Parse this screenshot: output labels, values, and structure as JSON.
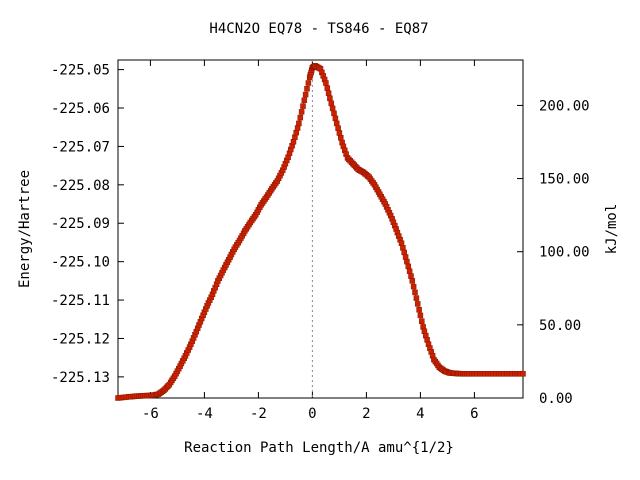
{
  "chart_data": {
    "type": "line",
    "title": "H4CN2O   EQ78 - TS846 - EQ87",
    "xlabel": "Reaction Path Length/A amu^{1/2}",
    "ylabel": "Energy/Hartree",
    "y2label": "kJ/mol",
    "xlim": [
      -7.2,
      7.8
    ],
    "ylim": [
      -225.1355,
      -225.0475
    ],
    "x_ticks": [
      -6,
      -4,
      -2,
      0,
      2,
      4,
      6
    ],
    "x_tick_labels": [
      "-6",
      "-4",
      "-2",
      "0",
      "2",
      "4",
      "6"
    ],
    "y_ticks": [
      -225.05,
      -225.06,
      -225.07,
      -225.08,
      -225.09,
      -225.1,
      -225.11,
      -225.12,
      -225.13
    ],
    "y_tick_labels": [
      "-225.05",
      "-225.06",
      "-225.07",
      "-225.08",
      "-225.09",
      "-225.10",
      "-225.11",
      "-225.12",
      "-225.13"
    ],
    "y2_ref_hartree": -225.1355,
    "y2_ticks": [
      0,
      50,
      100,
      150,
      200
    ],
    "y2_tick_labels": [
      "0.00",
      "50.00",
      "100.00",
      "150.00",
      "200.00"
    ],
    "zero_line": true,
    "grid": false,
    "series": [
      {
        "line_color": "#00aa00",
        "marker_color": "#cc2200",
        "x": [
          -7.2,
          -6.8,
          -6.5,
          -6.2,
          -5.9,
          -5.7,
          -5.5,
          -5.3,
          -5.1,
          -4.9,
          -4.7,
          -4.5,
          -4.3,
          -4.1,
          -3.9,
          -3.7,
          -3.5,
          -3.3,
          -3.1,
          -2.9,
          -2.7,
          -2.5,
          -2.3,
          -2.1,
          -1.9,
          -1.7,
          -1.5,
          -1.3,
          -1.1,
          -0.9,
          -0.7,
          -0.5,
          -0.3,
          -0.1,
          0.0,
          0.1,
          0.3,
          0.5,
          0.7,
          0.9,
          1.1,
          1.3,
          1.5,
          1.7,
          1.9,
          2.1,
          2.3,
          2.5,
          2.7,
          2.9,
          3.1,
          3.3,
          3.5,
          3.7,
          3.9,
          4.1,
          4.3,
          4.5,
          4.7,
          4.9,
          5.1,
          5.3,
          5.5,
          5.8,
          6.2,
          6.6,
          7.0,
          7.4,
          7.8
        ],
        "y": [
          -225.1355,
          -225.1352,
          -225.135,
          -225.1349,
          -225.1348,
          -225.1345,
          -225.1335,
          -225.132,
          -225.1298,
          -225.1272,
          -225.1245,
          -225.1215,
          -225.1182,
          -225.1148,
          -225.1115,
          -225.1085,
          -225.105,
          -225.1022,
          -225.0995,
          -225.0968,
          -225.0945,
          -225.092,
          -225.0898,
          -225.0878,
          -225.0852,
          -225.0832,
          -225.081,
          -225.079,
          -225.0762,
          -225.0728,
          -225.0688,
          -225.064,
          -225.058,
          -225.052,
          -225.0495,
          -225.049,
          -225.0498,
          -225.0535,
          -225.0588,
          -225.064,
          -225.069,
          -225.073,
          -225.0745,
          -225.076,
          -225.0768,
          -225.078,
          -225.08,
          -225.0825,
          -225.085,
          -225.088,
          -225.0915,
          -225.0952,
          -225.1,
          -225.105,
          -225.111,
          -225.117,
          -225.1215,
          -225.1255,
          -225.1275,
          -225.1285,
          -225.129,
          -225.1291,
          -225.1292,
          -225.1292,
          -225.1292,
          -225.1292,
          -225.1292,
          -225.1292,
          -225.1292
        ]
      }
    ]
  }
}
